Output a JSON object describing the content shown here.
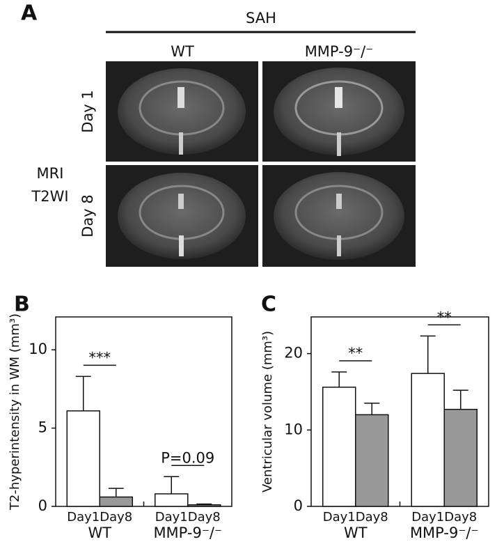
{
  "panel_a": {
    "panel": "A",
    "header": "SAH",
    "columns": [
      "WT",
      "MMP-9⁻/⁻"
    ],
    "rows": [
      "Day 1",
      "Day 8"
    ],
    "side_label": [
      "MRI",
      "T2WI"
    ]
  },
  "chart_data": [
    {
      "type": "bar",
      "panel": "B",
      "ylabel": "T2-hyperintensity in WM (mm³)",
      "categories": [
        "WT",
        "MMP-9⁻/⁻"
      ],
      "series": [
        {
          "name": "Day1",
          "color": "#ffffff",
          "values": [
            6.1,
            0.8
          ],
          "errors": [
            2.2,
            1.1
          ]
        },
        {
          "name": "Day8",
          "color": "#999999",
          "values": [
            0.6,
            0.1
          ],
          "errors": [
            0.55,
            0.05
          ]
        }
      ],
      "annotations": [
        "***",
        "P=0.09"
      ],
      "ylim": [
        0,
        12.1
      ],
      "yticks": [
        0,
        5,
        10
      ]
    },
    {
      "type": "bar",
      "panel": "C",
      "ylabel": "Ventricular volume (mm³)",
      "categories": [
        "WT",
        "MMP-9⁻/⁻"
      ],
      "series": [
        {
          "name": "Day1",
          "color": "#ffffff",
          "values": [
            15.6,
            17.4
          ],
          "errors": [
            2.0,
            4.9
          ]
        },
        {
          "name": "Day8",
          "color": "#999999",
          "values": [
            12.0,
            12.7
          ],
          "errors": [
            1.5,
            2.5
          ]
        }
      ],
      "annotations": [
        "**",
        "**"
      ],
      "ylim": [
        0,
        24.8
      ],
      "yticks": [
        0,
        10,
        20
      ]
    }
  ]
}
